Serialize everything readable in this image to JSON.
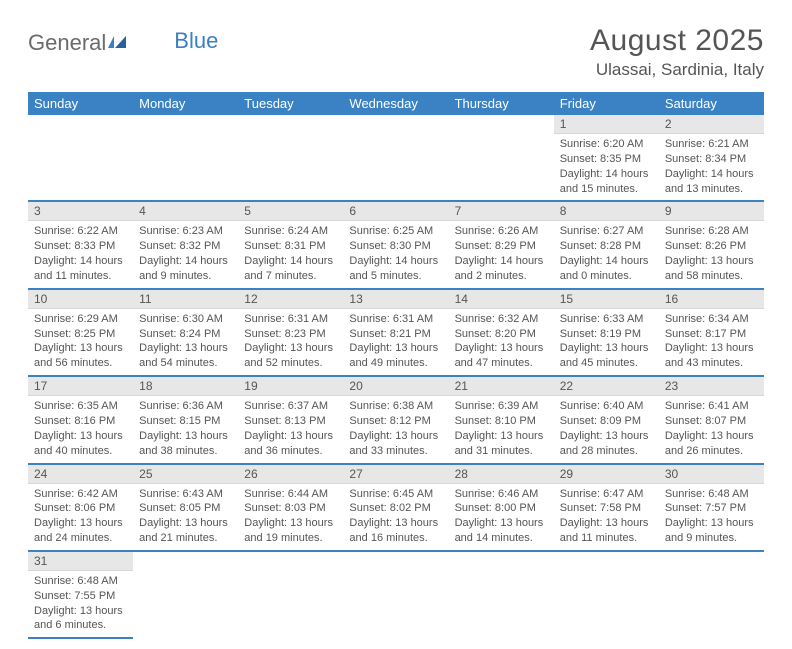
{
  "logo": {
    "text_a": "General",
    "text_b": "Blue"
  },
  "title": "August 2025",
  "location": "Ulassai, Sardinia, Italy",
  "colors": {
    "header_bg": "#3b82c4",
    "header_text": "#ffffff",
    "daynum_bg": "#e7e7e7",
    "text": "#555555",
    "row_divider": "#3b82c4"
  },
  "week_headers": [
    "Sunday",
    "Monday",
    "Tuesday",
    "Wednesday",
    "Thursday",
    "Friday",
    "Saturday"
  ],
  "weeks": [
    [
      null,
      null,
      null,
      null,
      null,
      {
        "n": "1",
        "sr": "Sunrise: 6:20 AM",
        "ss": "Sunset: 8:35 PM",
        "dl": "Daylight: 14 hours and 15 minutes."
      },
      {
        "n": "2",
        "sr": "Sunrise: 6:21 AM",
        "ss": "Sunset: 8:34 PM",
        "dl": "Daylight: 14 hours and 13 minutes."
      }
    ],
    [
      {
        "n": "3",
        "sr": "Sunrise: 6:22 AM",
        "ss": "Sunset: 8:33 PM",
        "dl": "Daylight: 14 hours and 11 minutes."
      },
      {
        "n": "4",
        "sr": "Sunrise: 6:23 AM",
        "ss": "Sunset: 8:32 PM",
        "dl": "Daylight: 14 hours and 9 minutes."
      },
      {
        "n": "5",
        "sr": "Sunrise: 6:24 AM",
        "ss": "Sunset: 8:31 PM",
        "dl": "Daylight: 14 hours and 7 minutes."
      },
      {
        "n": "6",
        "sr": "Sunrise: 6:25 AM",
        "ss": "Sunset: 8:30 PM",
        "dl": "Daylight: 14 hours and 5 minutes."
      },
      {
        "n": "7",
        "sr": "Sunrise: 6:26 AM",
        "ss": "Sunset: 8:29 PM",
        "dl": "Daylight: 14 hours and 2 minutes."
      },
      {
        "n": "8",
        "sr": "Sunrise: 6:27 AM",
        "ss": "Sunset: 8:28 PM",
        "dl": "Daylight: 14 hours and 0 minutes."
      },
      {
        "n": "9",
        "sr": "Sunrise: 6:28 AM",
        "ss": "Sunset: 8:26 PM",
        "dl": "Daylight: 13 hours and 58 minutes."
      }
    ],
    [
      {
        "n": "10",
        "sr": "Sunrise: 6:29 AM",
        "ss": "Sunset: 8:25 PM",
        "dl": "Daylight: 13 hours and 56 minutes."
      },
      {
        "n": "11",
        "sr": "Sunrise: 6:30 AM",
        "ss": "Sunset: 8:24 PM",
        "dl": "Daylight: 13 hours and 54 minutes."
      },
      {
        "n": "12",
        "sr": "Sunrise: 6:31 AM",
        "ss": "Sunset: 8:23 PM",
        "dl": "Daylight: 13 hours and 52 minutes."
      },
      {
        "n": "13",
        "sr": "Sunrise: 6:31 AM",
        "ss": "Sunset: 8:21 PM",
        "dl": "Daylight: 13 hours and 49 minutes."
      },
      {
        "n": "14",
        "sr": "Sunrise: 6:32 AM",
        "ss": "Sunset: 8:20 PM",
        "dl": "Daylight: 13 hours and 47 minutes."
      },
      {
        "n": "15",
        "sr": "Sunrise: 6:33 AM",
        "ss": "Sunset: 8:19 PM",
        "dl": "Daylight: 13 hours and 45 minutes."
      },
      {
        "n": "16",
        "sr": "Sunrise: 6:34 AM",
        "ss": "Sunset: 8:17 PM",
        "dl": "Daylight: 13 hours and 43 minutes."
      }
    ],
    [
      {
        "n": "17",
        "sr": "Sunrise: 6:35 AM",
        "ss": "Sunset: 8:16 PM",
        "dl": "Daylight: 13 hours and 40 minutes."
      },
      {
        "n": "18",
        "sr": "Sunrise: 6:36 AM",
        "ss": "Sunset: 8:15 PM",
        "dl": "Daylight: 13 hours and 38 minutes."
      },
      {
        "n": "19",
        "sr": "Sunrise: 6:37 AM",
        "ss": "Sunset: 8:13 PM",
        "dl": "Daylight: 13 hours and 36 minutes."
      },
      {
        "n": "20",
        "sr": "Sunrise: 6:38 AM",
        "ss": "Sunset: 8:12 PM",
        "dl": "Daylight: 13 hours and 33 minutes."
      },
      {
        "n": "21",
        "sr": "Sunrise: 6:39 AM",
        "ss": "Sunset: 8:10 PM",
        "dl": "Daylight: 13 hours and 31 minutes."
      },
      {
        "n": "22",
        "sr": "Sunrise: 6:40 AM",
        "ss": "Sunset: 8:09 PM",
        "dl": "Daylight: 13 hours and 28 minutes."
      },
      {
        "n": "23",
        "sr": "Sunrise: 6:41 AM",
        "ss": "Sunset: 8:07 PM",
        "dl": "Daylight: 13 hours and 26 minutes."
      }
    ],
    [
      {
        "n": "24",
        "sr": "Sunrise: 6:42 AM",
        "ss": "Sunset: 8:06 PM",
        "dl": "Daylight: 13 hours and 24 minutes."
      },
      {
        "n": "25",
        "sr": "Sunrise: 6:43 AM",
        "ss": "Sunset: 8:05 PM",
        "dl": "Daylight: 13 hours and 21 minutes."
      },
      {
        "n": "26",
        "sr": "Sunrise: 6:44 AM",
        "ss": "Sunset: 8:03 PM",
        "dl": "Daylight: 13 hours and 19 minutes."
      },
      {
        "n": "27",
        "sr": "Sunrise: 6:45 AM",
        "ss": "Sunset: 8:02 PM",
        "dl": "Daylight: 13 hours and 16 minutes."
      },
      {
        "n": "28",
        "sr": "Sunrise: 6:46 AM",
        "ss": "Sunset: 8:00 PM",
        "dl": "Daylight: 13 hours and 14 minutes."
      },
      {
        "n": "29",
        "sr": "Sunrise: 6:47 AM",
        "ss": "Sunset: 7:58 PM",
        "dl": "Daylight: 13 hours and 11 minutes."
      },
      {
        "n": "30",
        "sr": "Sunrise: 6:48 AM",
        "ss": "Sunset: 7:57 PM",
        "dl": "Daylight: 13 hours and 9 minutes."
      }
    ],
    [
      {
        "n": "31",
        "sr": "Sunrise: 6:48 AM",
        "ss": "Sunset: 7:55 PM",
        "dl": "Daylight: 13 hours and 6 minutes."
      },
      null,
      null,
      null,
      null,
      null,
      null
    ]
  ]
}
